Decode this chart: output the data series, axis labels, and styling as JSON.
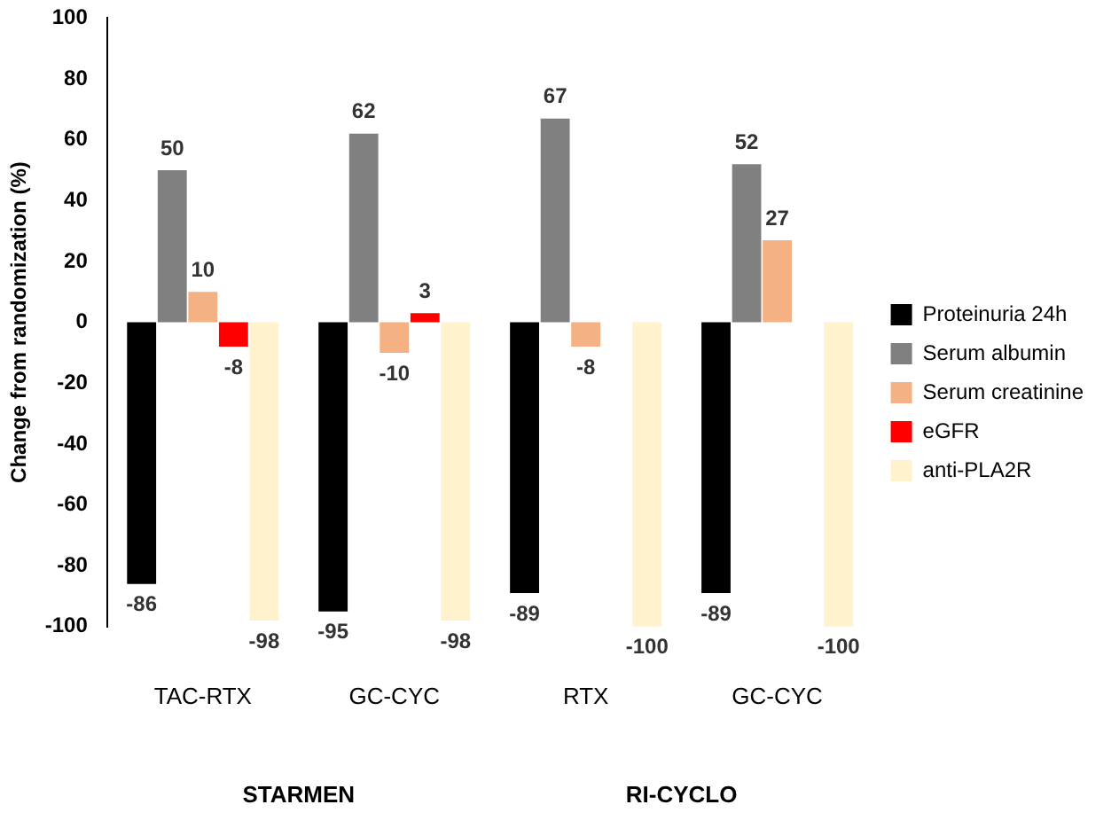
{
  "chart_data": {
    "type": "bar",
    "ylabel": "Change from randomization (%)",
    "categories": [
      "TAC-RTX",
      "GC-CYC",
      "RTX",
      "GC-CYC"
    ],
    "series": [
      {
        "name": "Proteinuria 24h",
        "color": "#000000",
        "values": [
          -86,
          -95,
          -89,
          -89
        ]
      },
      {
        "name": "Serum albumin",
        "color": "#808080",
        "values": [
          50,
          62,
          67,
          52
        ]
      },
      {
        "name": "Serum creatinine",
        "color": "#f4b183",
        "values": [
          10,
          -10,
          -8,
          27
        ]
      },
      {
        "name": "eGFR",
        "color": "#ff0000",
        "values": [
          -8,
          3,
          null,
          null
        ]
      },
      {
        "name": "anti-PLA2R",
        "color": "#fff2cc",
        "values": [
          -98,
          -98,
          -100,
          -100
        ]
      }
    ],
    "ylim": [
      -100,
      100
    ],
    "yticks": [
      -100,
      -80,
      -60,
      -40,
      -20,
      0,
      20,
      40,
      60,
      80,
      100
    ],
    "grid": false,
    "legend": "right",
    "data_labels": true,
    "annotations": [
      "STARMEN",
      "RI-CYCLO"
    ]
  }
}
